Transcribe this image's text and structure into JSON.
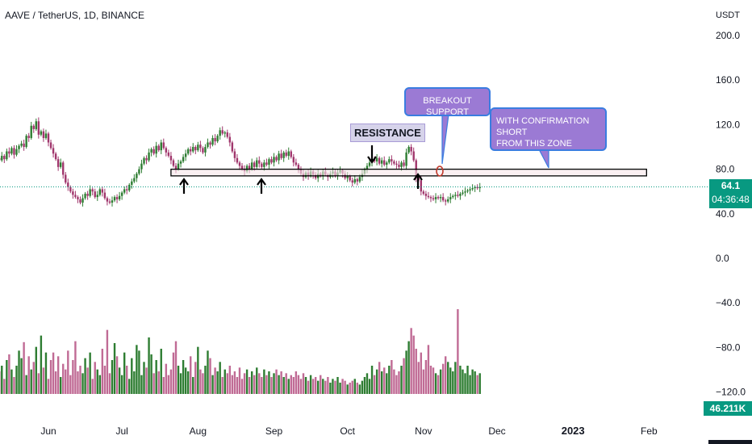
{
  "header": {
    "symbol_title": "AAVE / TetherUS, 1D, BINANCE"
  },
  "price_axis": {
    "currency": "USDT",
    "ticks": [
      "200.0",
      "160.0",
      "120.0",
      "80.0",
      "40.0",
      "0.0",
      "−40.0",
      "−80.0",
      "−120.0"
    ]
  },
  "time_axis": {
    "labels": [
      "Jun",
      "Jul",
      "Aug",
      "Sep",
      "Oct",
      "Nov",
      "Dec",
      "2023",
      "Feb"
    ]
  },
  "last_price": {
    "value": "64.1",
    "countdown": "04:36:48"
  },
  "last_volume": {
    "value": "46.211K"
  },
  "annotations": {
    "resistance_label": "RESISTANCE",
    "breakout_callout": "BREAKOUT SUPPORT",
    "confirmation_callout": [
      "WITH CONFIRMATION SHORT",
      "FROM THIS ZONE"
    ]
  },
  "colors": {
    "up": "#2e7d32",
    "down": "#a0366c",
    "vol_up": "#2e7d32",
    "vol_down": "#c06b95",
    "badge": "#089981",
    "callout": "#9b7ad4",
    "callout_border": "#3a7de0"
  },
  "chart_data": {
    "type": "candlestick",
    "symbol": "AAVE/USDT",
    "interval": "1D",
    "x_start": "2022-05-11",
    "x_end": "2022-12-02",
    "ylim": [
      -140,
      215
    ],
    "support_zone": [
      74,
      80
    ],
    "closes": [
      90,
      88,
      92,
      89,
      96,
      94,
      99,
      93,
      98,
      101,
      103,
      100,
      110,
      108,
      119,
      116,
      123,
      111,
      114,
      108,
      112,
      104,
      99,
      94,
      89,
      82,
      86,
      75,
      68,
      64,
      60,
      57,
      55,
      53,
      50,
      54,
      58,
      56,
      62,
      60,
      55,
      57,
      62,
      59,
      54,
      51,
      50,
      52,
      55,
      53,
      56,
      59,
      62,
      61,
      66,
      69,
      72,
      76,
      80,
      85,
      90,
      88,
      95,
      98,
      94,
      101,
      97,
      104,
      99,
      95,
      92,
      88,
      83,
      80,
      85,
      87,
      91,
      94,
      98,
      96,
      100,
      97,
      102,
      99,
      95,
      100,
      104,
      102,
      108,
      105,
      110,
      115,
      112,
      113,
      109,
      104,
      96,
      90,
      86,
      83,
      80,
      78,
      83,
      80,
      86,
      82,
      88,
      85,
      82,
      86,
      84,
      89,
      86,
      91,
      88,
      94,
      90,
      95,
      92,
      96,
      91,
      86,
      84,
      80,
      76,
      73,
      77,
      74,
      78,
      75,
      72,
      76,
      74,
      78,
      75,
      73,
      76,
      78,
      74,
      77,
      79,
      76,
      72,
      74,
      70,
      68,
      71,
      69,
      73,
      76,
      80,
      83,
      86,
      89,
      87,
      90,
      85,
      88,
      84,
      86,
      89,
      87,
      85,
      84,
      82,
      86,
      83,
      95,
      100,
      96,
      88,
      72,
      70,
      60,
      58,
      56,
      55,
      54,
      53,
      55,
      54,
      55,
      52,
      51,
      53,
      55,
      56,
      57,
      56,
      58,
      59,
      60,
      61,
      62,
      63,
      64,
      63,
      64.1
    ],
    "volumes": [
      20,
      24,
      30,
      16,
      36,
      42,
      26,
      18,
      30,
      46,
      38,
      55,
      20,
      40,
      26,
      34,
      50,
      22,
      62,
      28,
      44,
      16,
      36,
      44,
      24,
      40,
      18,
      32,
      26,
      46,
      20,
      36,
      56,
      24,
      30,
      22,
      38,
      28,
      44,
      16,
      34,
      26,
      20,
      48,
      30,
      68,
      22,
      36,
      54,
      40,
      28,
      20,
      44,
      30,
      16,
      38,
      24,
      52,
      46,
      20,
      34,
      28,
      60,
      42,
      22,
      36,
      24,
      48,
      18,
      32,
      20,
      26,
      44,
      56,
      30,
      22,
      36,
      28,
      24,
      40,
      18,
      34,
      50,
      26,
      22,
      30,
      46,
      38,
      20,
      28,
      24,
      34,
      18,
      26,
      22,
      30,
      20,
      24,
      18,
      28,
      16,
      22,
      26,
      18,
      24,
      20,
      28,
      22,
      18,
      26,
      20,
      24,
      18,
      22,
      26,
      20,
      24,
      18,
      22,
      16,
      20,
      18,
      24,
      20,
      16,
      22,
      18,
      14,
      20,
      16,
      18,
      14,
      20,
      16,
      14,
      18,
      12,
      16,
      14,
      18,
      12,
      16,
      14,
      10,
      12,
      14,
      16,
      12,
      10,
      14,
      18,
      22,
      16,
      30,
      20,
      26,
      34,
      24,
      28,
      22,
      30,
      36,
      26,
      20,
      24,
      30,
      38,
      46,
      56,
      70,
      62,
      48,
      34,
      44,
      26,
      36,
      52,
      30,
      28,
      22,
      20,
      26,
      32,
      40,
      34,
      28,
      24,
      34,
      90,
      30,
      26,
      22,
      30,
      20,
      26,
      24,
      20,
      22
    ]
  }
}
